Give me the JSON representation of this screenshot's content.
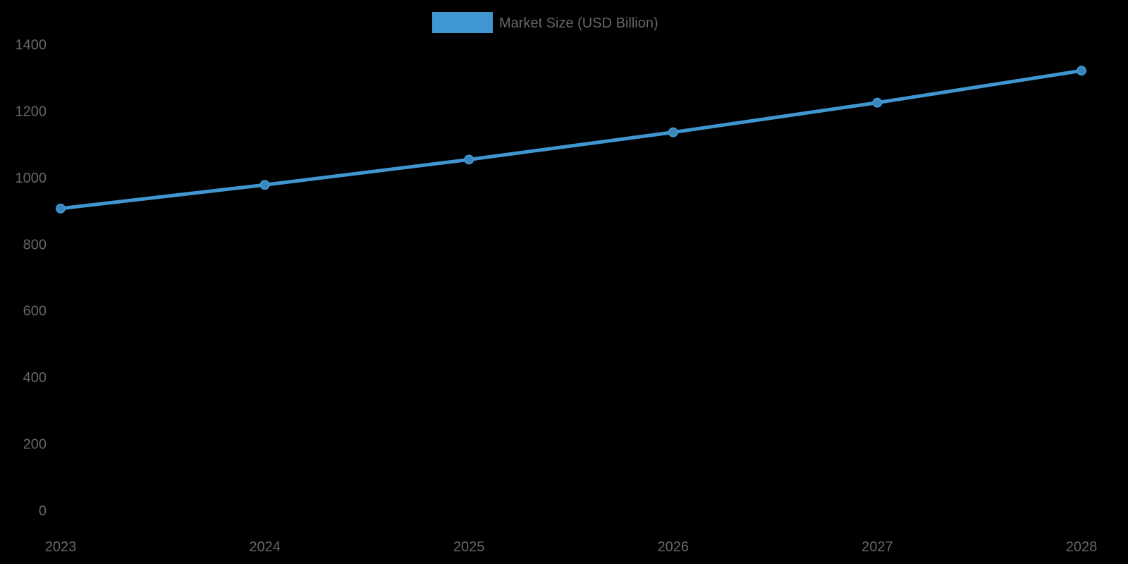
{
  "legend": {
    "label": "Market Size (USD Billion)",
    "color": "#4096d0"
  },
  "colors": {
    "background": "#000000",
    "line": "#4096d0",
    "point": "#4096d0",
    "tick_text": "#666666"
  },
  "chart_data": {
    "type": "line",
    "title": "",
    "xlabel": "",
    "ylabel": "",
    "categories": [
      "2023",
      "2024",
      "2025",
      "2026",
      "2027",
      "2028"
    ],
    "series": [
      {
        "name": "Market Size (USD Billion)",
        "values": [
          907,
          978,
          1054,
          1136,
          1225,
          1321
        ]
      }
    ],
    "ylim": [
      0,
      1400
    ],
    "yticks": [
      0,
      200,
      400,
      600,
      800,
      1000,
      1200,
      1400
    ],
    "grid": false,
    "legend_position": "top"
  }
}
